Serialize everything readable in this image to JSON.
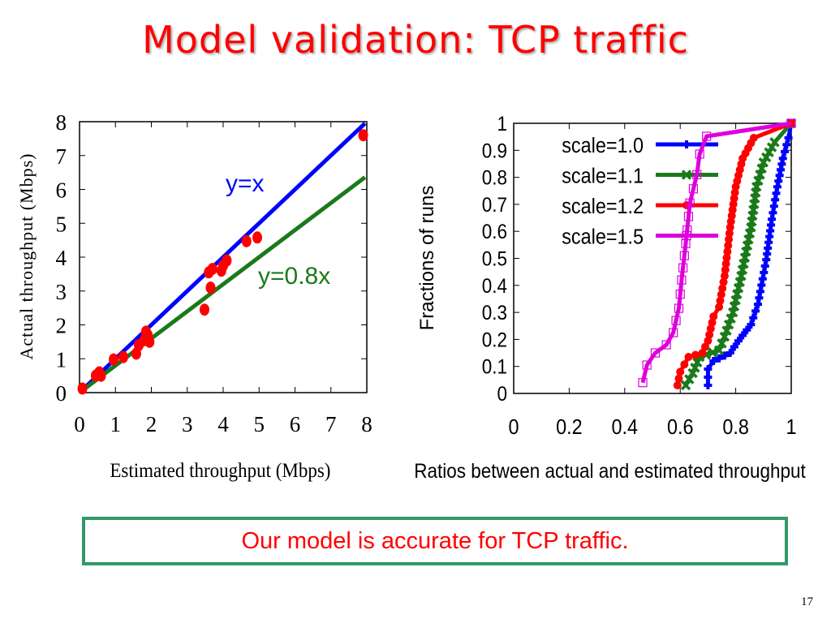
{
  "slide": {
    "title": "Model validation: TCP traffic",
    "callout": "Our model is accurate for TCP traffic.",
    "page_number": "17"
  },
  "chart_data": [
    {
      "type": "scatter",
      "title": "",
      "xlabel": "Estimated throughput (Mbps)",
      "ylabel": "Actual throughput (Mbps)",
      "xlim": [
        0,
        8
      ],
      "ylim": [
        0,
        8
      ],
      "xticks": [
        "0",
        "1",
        "2",
        "3",
        "4",
        "5",
        "6",
        "7",
        "8"
      ],
      "yticks": [
        "0",
        "1",
        "2",
        "3",
        "4",
        "5",
        "6",
        "7",
        "8"
      ],
      "grid": false,
      "reference_lines": [
        {
          "name": "y=x",
          "slope": 1.0,
          "color": "#0000ff",
          "label": "y=x"
        },
        {
          "name": "y=0.8x",
          "slope": 0.8,
          "color": "#1a7a1a",
          "label": "y=0.8x"
        }
      ],
      "point_color": "#ff0000",
      "points": [
        {
          "x": 0.08,
          "y": 0.12
        },
        {
          "x": 0.45,
          "y": 0.5
        },
        {
          "x": 0.55,
          "y": 0.6
        },
        {
          "x": 0.6,
          "y": 0.5
        },
        {
          "x": 0.95,
          "y": 0.98
        },
        {
          "x": 1.22,
          "y": 1.05
        },
        {
          "x": 1.58,
          "y": 1.15
        },
        {
          "x": 1.65,
          "y": 1.4
        },
        {
          "x": 1.8,
          "y": 1.55
        },
        {
          "x": 1.85,
          "y": 1.8
        },
        {
          "x": 1.9,
          "y": 1.7
        },
        {
          "x": 1.95,
          "y": 1.5
        },
        {
          "x": 3.48,
          "y": 2.45
        },
        {
          "x": 3.6,
          "y": 3.55
        },
        {
          "x": 3.65,
          "y": 3.1
        },
        {
          "x": 3.7,
          "y": 3.65
        },
        {
          "x": 3.95,
          "y": 3.6
        },
        {
          "x": 4.0,
          "y": 3.75
        },
        {
          "x": 4.1,
          "y": 3.9
        },
        {
          "x": 4.65,
          "y": 4.47
        },
        {
          "x": 4.95,
          "y": 4.58
        },
        {
          "x": 7.9,
          "y": 7.6
        }
      ]
    },
    {
      "type": "line",
      "title": "",
      "xlabel": "Ratios between actual and estimated throughput",
      "ylabel": "Fractions of runs",
      "xlim": [
        0,
        1
      ],
      "ylim": [
        0,
        1
      ],
      "xticks": [
        "0",
        "0.2",
        "0.4",
        "0.6",
        "0.8",
        "1"
      ],
      "yticks": [
        "0",
        "0.1",
        "0.2",
        "0.3",
        "0.4",
        "0.5",
        "0.6",
        "0.7",
        "0.8",
        "0.9",
        "1"
      ],
      "grid": false,
      "legend_position": "top-left",
      "series": [
        {
          "name": "scale=1.0",
          "color": "#0000ff",
          "marker": "plus",
          "x": [
            0.7,
            0.7,
            0.72,
            0.78,
            0.81,
            0.855,
            0.88,
            0.91,
            0.93,
            0.95,
            0.97,
            0.99,
            1.0
          ],
          "y": [
            0.03,
            0.09,
            0.12,
            0.15,
            0.195,
            0.255,
            0.33,
            0.495,
            0.645,
            0.765,
            0.87,
            0.946,
            1.0
          ]
        },
        {
          "name": "scale=1.1",
          "color": "#1a7a1a",
          "marker": "x",
          "x": [
            0.62,
            0.645,
            0.67,
            0.74,
            0.76,
            0.79,
            0.82,
            0.855,
            0.875,
            0.9,
            0.94,
            1.0
          ],
          "y": [
            0.03,
            0.075,
            0.135,
            0.16,
            0.21,
            0.3,
            0.435,
            0.615,
            0.765,
            0.855,
            0.93,
            1.0
          ]
        },
        {
          "name": "scale=1.2",
          "color": "#ff0000",
          "marker": "circle",
          "x": [
            0.59,
            0.6,
            0.63,
            0.68,
            0.7,
            0.72,
            0.74,
            0.76,
            0.78,
            0.8,
            0.825,
            0.865,
            1.0
          ],
          "y": [
            0.03,
            0.08,
            0.135,
            0.15,
            0.195,
            0.285,
            0.32,
            0.435,
            0.615,
            0.765,
            0.87,
            0.946,
            1.0
          ]
        },
        {
          "name": "scale=1.5",
          "color": "#dd00dd",
          "marker": "square",
          "x": [
            0.465,
            0.48,
            0.51,
            0.55,
            0.575,
            0.595,
            0.605,
            0.62,
            0.635,
            0.66,
            0.67,
            0.695,
            1.0
          ],
          "y": [
            0.04,
            0.105,
            0.15,
            0.18,
            0.225,
            0.315,
            0.42,
            0.555,
            0.705,
            0.81,
            0.886,
            0.952,
            1.0
          ]
        }
      ]
    }
  ]
}
